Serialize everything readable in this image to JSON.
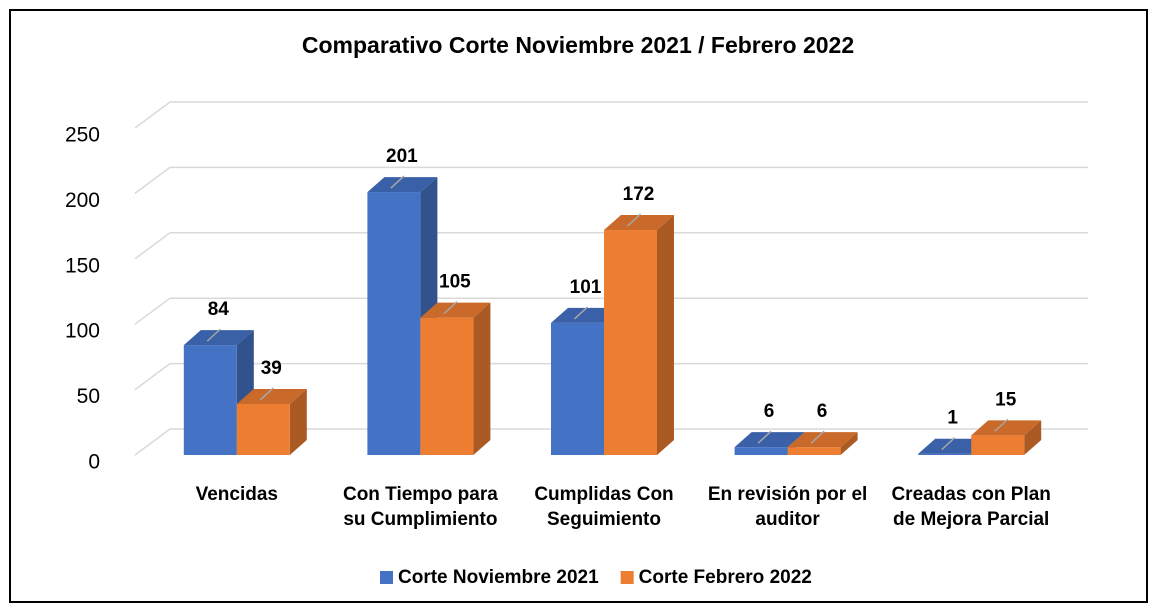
{
  "chart_data": {
    "type": "bar3d",
    "title": "Comparativo Corte Noviembre 2021 / Febrero 2022",
    "categories": [
      "Vencidas",
      "Con Tiempo para su Cumplimiento",
      "Cumplidas Con Seguimiento",
      "En revisión por el auditor",
      "Creadas con Plan de Mejora Parcial"
    ],
    "series": [
      {
        "name": "Corte Noviembre 2021",
        "color": "#4472c4",
        "values": [
          84,
          201,
          101,
          6,
          1
        ]
      },
      {
        "name": "Corte Febrero 2022",
        "color": "#ed7d31",
        "values": [
          39,
          105,
          172,
          6,
          15
        ]
      }
    ],
    "ylim": [
      0,
      250
    ],
    "yticks": [
      0,
      50,
      100,
      150,
      200,
      250
    ],
    "grid": true,
    "legend": "bottom"
  }
}
